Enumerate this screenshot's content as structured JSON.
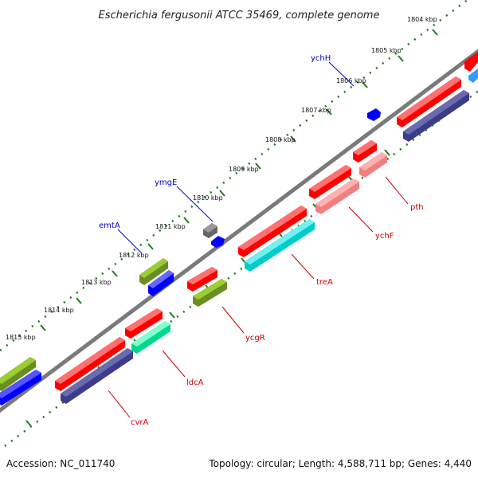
{
  "title": "Escherichia fergusonii ATCC 35469, complete genome",
  "footer": {
    "accession": "Accession: NC_011740",
    "summary": "Topology: circular; Length: 4,588,711 bp; Genes: 4,440"
  },
  "ruler": [
    "1804 kbp",
    "1805 kbp",
    "1806 kbp",
    "1807 kbp",
    "1808 kbp",
    "1809 kbp",
    "1810 kbp",
    "1811 kbp",
    "1812 kbp",
    "1813 kbp",
    "1814 kbp",
    "1815 kbp"
  ],
  "gene_labels": {
    "ychH": "ychH",
    "ymgE": "ymgE",
    "emtA": "emtA",
    "pth": "pth",
    "ychF": "ychF",
    "treA": "treA",
    "ycgR": "ycgR",
    "ldcA": "ldcA",
    "cvrA": "cvrA"
  },
  "colors": {
    "backbone": "#7a7a7a",
    "ticks": "#1e7a1e",
    "label_plus": "#0000cc",
    "label_minus": "#cc0000",
    "red": "#ff0000",
    "pink": "#f08080",
    "cyan": "#00cccc",
    "navy": "#3c3c88",
    "olive": "#6b8e23",
    "blue": "#0000ff",
    "teal": "#00e0a0",
    "gray": "#666666",
    "lightblue": "#3399ff"
  }
}
